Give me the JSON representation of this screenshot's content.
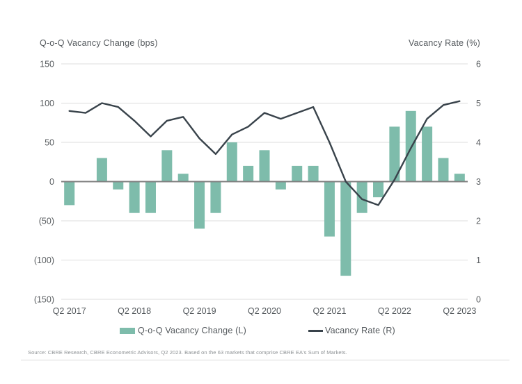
{
  "chart_data": {
    "type": "combo-bar-line",
    "categories": [
      "Q2 2017",
      "Q3 2017",
      "Q4 2017",
      "Q1 2018",
      "Q2 2018",
      "Q3 2018",
      "Q4 2018",
      "Q1 2019",
      "Q2 2019",
      "Q3 2019",
      "Q4 2019",
      "Q1 2020",
      "Q2 2020",
      "Q3 2020",
      "Q4 2020",
      "Q1 2021",
      "Q2 2021",
      "Q3 2021",
      "Q4 2021",
      "Q1 2022",
      "Q2 2022",
      "Q3 2022",
      "Q4 2022",
      "Q1 2023",
      "Q2 2023"
    ],
    "x_tick_labels": [
      "Q2 2017",
      "Q2 2018",
      "Q2 2019",
      "Q2 2020",
      "Q2 2021",
      "Q2 2022",
      "Q2 2023"
    ],
    "x_tick_every": 4,
    "series": [
      {
        "name": "Q-o-Q Vacancy Change (L)",
        "type": "bar",
        "axis": "left",
        "values": [
          -30,
          0,
          30,
          -10,
          -40,
          -40,
          40,
          10,
          -60,
          -40,
          50,
          20,
          40,
          -10,
          20,
          20,
          -70,
          -120,
          -40,
          -20,
          70,
          90,
          70,
          30,
          10
        ]
      },
      {
        "name": "Vacancy Rate (R)",
        "type": "line",
        "axis": "right",
        "values": [
          4.8,
          4.75,
          5.0,
          4.9,
          4.55,
          4.15,
          4.55,
          4.65,
          4.1,
          3.7,
          4.2,
          4.4,
          4.75,
          4.6,
          4.75,
          4.9,
          4.0,
          3.0,
          2.55,
          2.4,
          3.05,
          3.85,
          4.6,
          4.95,
          5.05
        ]
      }
    ],
    "left_axis": {
      "title": "Q-o-Q Vacancy Change (bps)",
      "min": -150,
      "max": 150,
      "ticks": [
        150,
        100,
        50,
        0,
        -50,
        -100,
        -150
      ],
      "tick_labels": [
        "150",
        "100",
        "50",
        "0",
        "(50)",
        "(100)",
        "(150)"
      ]
    },
    "right_axis": {
      "title": "Vacancy Rate (%)",
      "min": 0,
      "max": 6,
      "ticks": [
        6,
        5,
        4,
        3,
        2,
        1,
        0
      ],
      "tick_labels": [
        "6",
        "5",
        "4",
        "3",
        "2",
        "1",
        "0"
      ]
    },
    "grid": true,
    "legend_position": "bottom",
    "style": {
      "bar_color": "#7ebcab",
      "line_color": "#39434b",
      "grid_color": "#dcdcdc",
      "zero_line_color": "#808080",
      "tick_label_color": "#595d60",
      "x_label_color": "#53585c"
    }
  },
  "footer": {
    "source": "Source: CBRE Research, CBRE Econometric Advisors, Q2 2023. Based on the 63 markets that comprise CBRE EA's Sum of Markets."
  }
}
